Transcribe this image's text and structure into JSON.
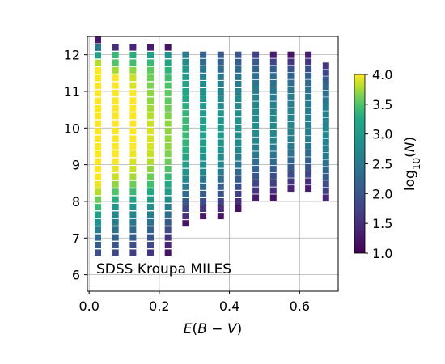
{
  "chart_data": {
    "type": "heatmap",
    "annotation": "SDSS Kroupa MILES",
    "xlabel": "E(B − V)",
    "ylabel": "",
    "xlim": [
      -0.005,
      0.71
    ],
    "ylim": [
      5.55,
      12.5
    ],
    "x_ticks": [
      "0.0",
      "0.2",
      "0.4",
      "0.6"
    ],
    "y_ticks": [
      "6",
      "7",
      "8",
      "9",
      "10",
      "11",
      "12"
    ],
    "grid": true,
    "colorbar": {
      "label": "log10(N)",
      "label_base": "log",
      "label_sub": "10",
      "label_arg": "(N)",
      "range": [
        1.0,
        4.0
      ],
      "ticks": [
        "1.0",
        "1.5",
        "2.0",
        "2.5",
        "3.0",
        "3.5",
        "4.0"
      ],
      "colormap": "viridis"
    },
    "cells": [
      {
        "x": 0.025,
        "ymin": 6.6,
        "ymax": 12.4,
        "values": [
          1.9,
          2.1,
          2.3,
          2.6,
          2.9,
          3.1,
          3.4,
          3.6,
          3.8,
          3.95,
          4.0,
          4.0,
          4.0,
          4.0,
          4.0,
          4.0,
          4.0,
          4.0,
          4.0,
          4.0,
          4.0,
          4.0,
          4.0,
          4.0,
          4.0,
          3.8,
          3.1,
          2.5,
          1.3
        ]
      },
      {
        "x": 0.075,
        "ymin": 6.6,
        "ymax": 12.2,
        "values": [
          1.8,
          2.0,
          2.2,
          2.4,
          2.6,
          2.8,
          3.0,
          3.3,
          3.5,
          3.7,
          3.85,
          3.95,
          4.0,
          4.0,
          4.0,
          4.0,
          4.0,
          4.0,
          4.0,
          4.0,
          4.0,
          4.0,
          4.0,
          4.0,
          3.75,
          3.5,
          3.4,
          1.5
        ]
      },
      {
        "x": 0.125,
        "ymin": 6.6,
        "ymax": 12.2,
        "values": [
          1.7,
          1.9,
          2.1,
          2.3,
          2.5,
          2.7,
          2.95,
          3.2,
          3.4,
          3.6,
          3.75,
          3.85,
          3.9,
          3.95,
          4.0,
          4.0,
          4.0,
          4.0,
          4.0,
          4.0,
          4.0,
          4.0,
          3.9,
          3.85,
          3.7,
          3.45,
          3.3,
          1.4
        ]
      },
      {
        "x": 0.175,
        "ymin": 6.6,
        "ymax": 12.2,
        "values": [
          1.6,
          1.8,
          2.0,
          2.2,
          2.4,
          2.6,
          2.85,
          3.05,
          3.25,
          3.45,
          3.6,
          3.7,
          3.8,
          3.85,
          3.9,
          3.9,
          3.9,
          3.85,
          3.8,
          3.75,
          3.7,
          3.7,
          3.65,
          3.6,
          3.55,
          3.4,
          3.1,
          1.3
        ]
      },
      {
        "x": 0.225,
        "ymin": 6.6,
        "ymax": 12.2,
        "values": [
          1.2,
          1.4,
          1.6,
          1.85,
          2.1,
          2.35,
          2.6,
          2.85,
          3.05,
          3.25,
          3.4,
          3.5,
          3.6,
          3.65,
          3.7,
          3.7,
          3.7,
          3.7,
          3.65,
          3.6,
          3.55,
          3.55,
          3.5,
          3.45,
          3.35,
          3.2,
          2.9,
          1.2
        ]
      },
      {
        "x": 0.275,
        "ymin": 7.4,
        "ymax": 12.0,
        "values": [
          1.2,
          1.5,
          1.8,
          2.05,
          2.3,
          2.55,
          2.75,
          2.95,
          3.1,
          3.2,
          3.3,
          3.35,
          3.4,
          3.4,
          3.4,
          3.35,
          3.3,
          3.25,
          3.2,
          3.15,
          3.1,
          3.0,
          2.85,
          2.6
        ]
      },
      {
        "x": 0.325,
        "ymin": 7.6,
        "ymax": 12.0,
        "values": [
          1.3,
          1.6,
          1.85,
          2.1,
          2.3,
          2.5,
          2.7,
          2.85,
          2.95,
          3.05,
          3.1,
          3.15,
          3.15,
          3.1,
          3.05,
          3.0,
          2.95,
          2.9,
          2.8,
          2.65,
          2.5,
          2.3,
          2.15
        ]
      },
      {
        "x": 0.375,
        "ymin": 7.6,
        "ymax": 12.0,
        "values": [
          1.2,
          1.5,
          1.7,
          1.95,
          2.15,
          2.35,
          2.55,
          2.7,
          2.8,
          2.9,
          2.95,
          3.0,
          3.0,
          2.95,
          2.9,
          2.85,
          2.8,
          2.7,
          2.6,
          2.5,
          2.35,
          2.2,
          2.05
        ]
      },
      {
        "x": 0.425,
        "ymin": 7.8,
        "ymax": 12.0,
        "values": [
          1.2,
          1.5,
          1.7,
          1.9,
          2.1,
          2.3,
          2.45,
          2.6,
          2.7,
          2.8,
          2.85,
          2.9,
          2.9,
          2.85,
          2.8,
          2.75,
          2.65,
          2.55,
          2.45,
          2.3,
          2.15,
          2.0
        ]
      },
      {
        "x": 0.475,
        "ymin": 8.1,
        "ymax": 12.0,
        "values": [
          1.3,
          1.6,
          1.8,
          2.0,
          2.2,
          2.35,
          2.5,
          2.6,
          2.7,
          2.75,
          2.8,
          2.8,
          2.75,
          2.7,
          2.65,
          2.55,
          2.45,
          2.35,
          2.2,
          2.05,
          1.7
        ]
      },
      {
        "x": 0.525,
        "ymin": 8.1,
        "ymax": 12.0,
        "values": [
          1.2,
          1.5,
          1.7,
          1.9,
          2.1,
          2.3,
          2.45,
          2.55,
          2.65,
          2.7,
          2.75,
          2.75,
          2.7,
          2.65,
          2.6,
          2.5,
          2.4,
          2.3,
          2.15,
          1.8,
          1.3
        ]
      },
      {
        "x": 0.575,
        "ymin": 8.35,
        "ymax": 12.0,
        "values": [
          1.4,
          1.6,
          1.85,
          2.05,
          2.25,
          2.4,
          2.5,
          2.6,
          2.65,
          2.7,
          2.7,
          2.65,
          2.6,
          2.55,
          2.45,
          2.35,
          2.2,
          2.0,
          1.6,
          1.2
        ]
      },
      {
        "x": 0.625,
        "ymin": 8.35,
        "ymax": 12.0,
        "values": [
          1.3,
          1.5,
          1.75,
          1.95,
          2.15,
          2.3,
          2.45,
          2.55,
          2.6,
          2.65,
          2.65,
          2.6,
          2.55,
          2.5,
          2.4,
          2.3,
          2.15,
          1.95,
          1.6,
          1.3
        ]
      },
      {
        "x": 0.675,
        "ymin": 8.1,
        "ymax": 11.7,
        "values": [
          1.4,
          1.7,
          1.9,
          2.1,
          2.25,
          2.4,
          2.5,
          2.6,
          2.65,
          2.7,
          2.7,
          2.65,
          2.6,
          2.55,
          2.45,
          2.35,
          2.25,
          2.1,
          1.8,
          1.6
        ]
      }
    ]
  }
}
